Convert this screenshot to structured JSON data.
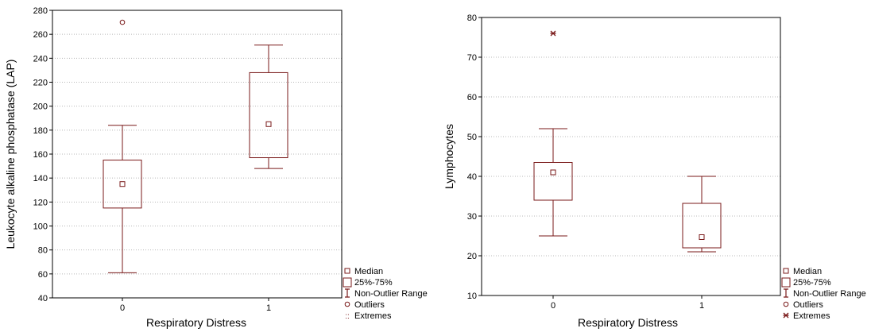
{
  "chart_data": [
    {
      "type": "box",
      "xlabel": "Respiratory Distress",
      "ylabel": "Leukocyte alkaline phosphatase (LAP)",
      "ylim": [
        40,
        280
      ],
      "yticks": [
        40,
        60,
        80,
        100,
        120,
        140,
        160,
        180,
        200,
        220,
        240,
        260,
        280
      ],
      "categories": [
        "0",
        "1"
      ],
      "boxes": [
        {
          "category": "0",
          "median": 135,
          "q1": 115,
          "q3": 155,
          "whisker_low": 61,
          "whisker_high": 184,
          "outliers": [
            270
          ],
          "extremes": []
        },
        {
          "category": "1",
          "median": 185,
          "q1": 157,
          "q3": 228,
          "whisker_low": 148,
          "whisker_high": 251,
          "outliers": [],
          "extremes": []
        }
      ],
      "grid": true,
      "legend_position": "bottom-right",
      "legend": [
        "Median",
        "25%-75%",
        "Non-Outlier Range",
        "Outliers",
        "Extremes"
      ]
    },
    {
      "type": "box",
      "xlabel": "Respiratory Distress",
      "ylabel": "Lymphocytes",
      "ylim": [
        10,
        80
      ],
      "yticks": [
        10,
        20,
        30,
        40,
        50,
        60,
        70,
        80
      ],
      "categories": [
        "0",
        "1"
      ],
      "boxes": [
        {
          "category": "0",
          "median": 41,
          "q1": 34,
          "q3": 43.5,
          "whisker_low": 25,
          "whisker_high": 52,
          "outliers": [],
          "extremes": [
            76
          ]
        },
        {
          "category": "1",
          "median": 24.7,
          "q1": 22,
          "q3": 33.2,
          "whisker_low": 21,
          "whisker_high": 40,
          "outliers": [],
          "extremes": []
        }
      ],
      "grid": true,
      "legend_position": "bottom-right",
      "legend": [
        "Median",
        "25%-75%",
        "Non-Outlier Range",
        "Outliers",
        "Extremes"
      ]
    }
  ],
  "colors": {
    "box": "#7a1a1a",
    "grid": "#b8b8b8",
    "plot_bg": "#ffffff",
    "axis": "#000000"
  }
}
